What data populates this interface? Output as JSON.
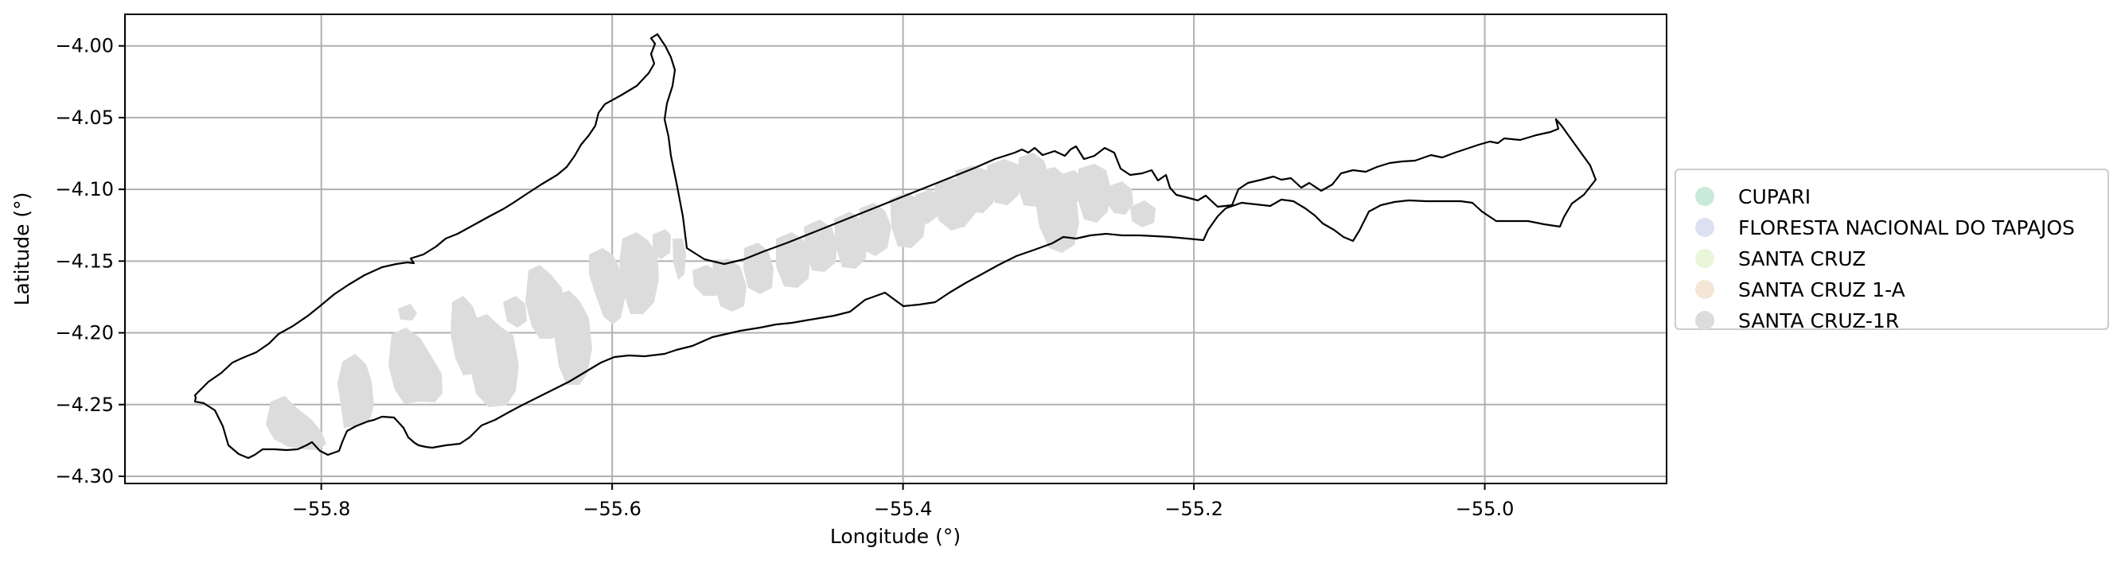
{
  "map": {
    "xlabel": "Longitude (°)",
    "ylabel": "Latitude (°)",
    "xlim": [
      -55.935,
      -54.875
    ],
    "ylim": [
      -4.305,
      -3.978
    ],
    "x_ticks": [
      -55.8,
      -55.6,
      -55.4,
      -55.2,
      -55.0
    ],
    "x_tick_labels": [
      "−55.8",
      "−55.6",
      "−55.4",
      "−55.2",
      "−55.0"
    ],
    "y_ticks": [
      -4.0,
      -4.05,
      -4.1,
      -4.15,
      -4.2,
      -4.25,
      -4.3
    ],
    "y_tick_labels": [
      "−4.00",
      "−4.05",
      "−4.10",
      "−4.15",
      "−4.20",
      "−4.25",
      "−4.30"
    ],
    "grid": true,
    "legend_placement": "center-right, outside plot",
    "legend": [
      {
        "label": "CUPARI",
        "color": "#c9eadb"
      },
      {
        "label": "FLORESTA NACIONAL DO TAPAJOS",
        "color": "#dde0f0"
      },
      {
        "label": "SANTA CRUZ",
        "color": "#e9f6d7"
      },
      {
        "label": "SANTA CRUZ 1-A",
        "color": "#f4e6d6"
      },
      {
        "label": "SANTA CRUZ-1R",
        "color": "#dcdcdc"
      }
    ]
  }
}
